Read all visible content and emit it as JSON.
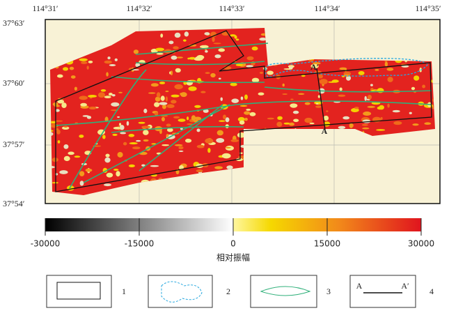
{
  "map": {
    "lon_labels": [
      "114°31′",
      "114°32′",
      "114°33′",
      "114°34′",
      "114°35′"
    ],
    "lat_labels": [
      "37°63′",
      "37°60′",
      "37°57′",
      "37°54′"
    ],
    "profile": {
      "start": "A",
      "end": "A′"
    }
  },
  "colorbar": {
    "ticks": [
      -30000,
      -15000,
      0,
      15000,
      30000
    ],
    "label": "相对振幅"
  },
  "legend": {
    "items": [
      {
        "number": "1"
      },
      {
        "number": "2"
      },
      {
        "number": "3"
      },
      {
        "number": "4",
        "start": "A",
        "end": "A′"
      }
    ]
  }
}
